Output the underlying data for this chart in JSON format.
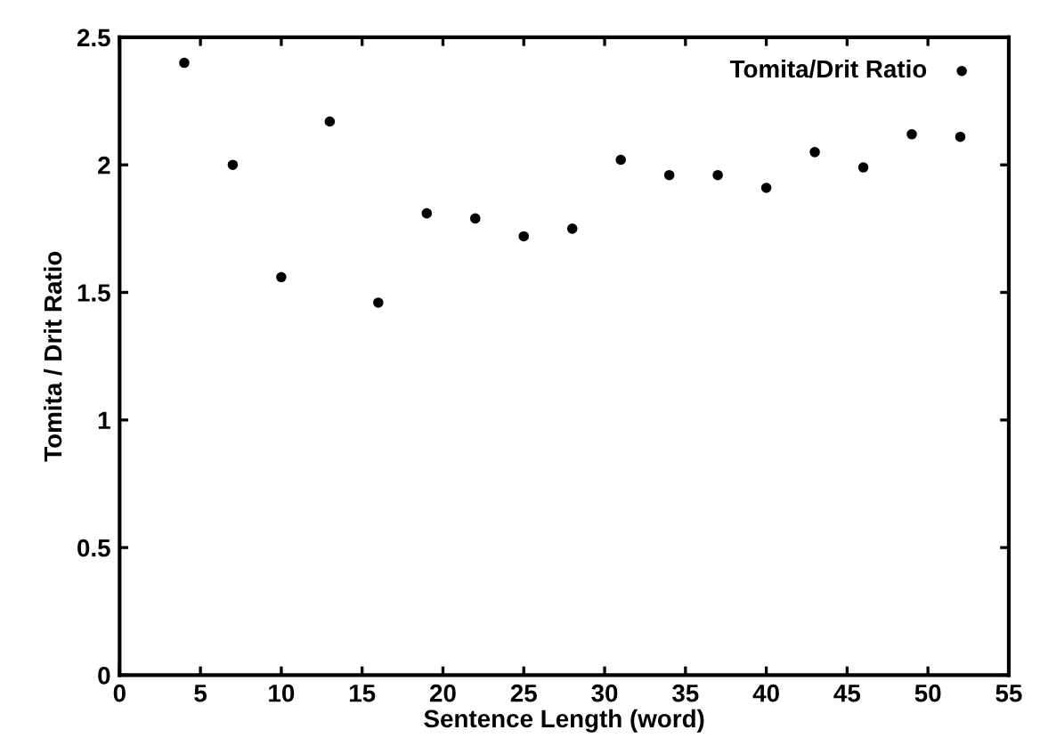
{
  "chart_data": {
    "type": "scatter",
    "xlabel": "Sentence Length (word)",
    "ylabel": "Tomita / Drit Ratio",
    "x": [
      4,
      7,
      10,
      13,
      16,
      19,
      22,
      25,
      28,
      31,
      34,
      37,
      40,
      43,
      46,
      49,
      52
    ],
    "series": [
      {
        "name": "Tomita/Drit Ratio",
        "color": "#000000",
        "values": [
          2.4,
          2.0,
          1.56,
          2.17,
          1.46,
          1.81,
          1.79,
          1.72,
          1.75,
          2.02,
          1.96,
          1.96,
          1.91,
          2.05,
          1.99,
          2.12,
          2.11
        ]
      }
    ],
    "xlim": [
      0,
      55
    ],
    "xticks": [
      0,
      5,
      10,
      15,
      20,
      25,
      30,
      35,
      40,
      45,
      50,
      55
    ],
    "ylim": [
      0,
      2.5
    ],
    "yticks": [
      0,
      0.5,
      1,
      1.5,
      2,
      2.5
    ],
    "marker": "circle",
    "legend": "top right",
    "grid": false
  }
}
